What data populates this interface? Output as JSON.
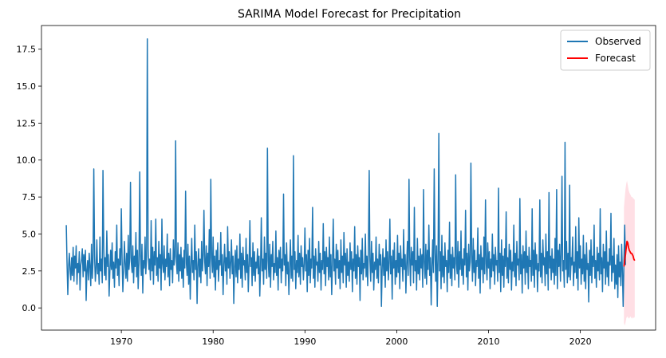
{
  "chart_data": {
    "type": "line",
    "title": "SARIMA Model Forecast for Precipitation",
    "xlabel": "",
    "ylabel": "",
    "xlim": [
      1961.3,
      2028.2
    ],
    "ylim": [
      -1.5,
      19.1
    ],
    "x_ticks": [
      1970,
      1980,
      1990,
      2000,
      2010,
      2020
    ],
    "x_tick_labels": [
      "1970",
      "1980",
      "1990",
      "2000",
      "2010",
      "2020"
    ],
    "y_ticks": [
      0,
      2.5,
      5,
      7.5,
      10,
      12.5,
      15,
      17.5
    ],
    "y_tick_labels": [
      "0.0",
      "2.5",
      "5.0",
      "7.5",
      "10.0",
      "12.5",
      "15.0",
      "17.5"
    ],
    "legend": {
      "position": "top-right",
      "entries": [
        "Observed",
        "Forecast"
      ]
    },
    "series": [
      {
        "name": "Observed",
        "color": "#1f77b4",
        "x_start": 1964.0,
        "x_step": 0.08333,
        "note_points_are_monthly": true,
        "values": [
          5.6,
          3.1,
          0.9,
          2.8,
          3.7,
          2.6,
          1.9,
          3.4,
          2.2,
          4.1,
          1.8,
          3.5,
          2.7,
          4.2,
          1.6,
          3.0,
          2.4,
          3.8,
          1.2,
          2.9,
          3.3,
          4.0,
          2.1,
          3.6,
          2.5,
          3.9,
          0.5,
          2.6,
          3.2,
          1.9,
          3.7,
          2.8,
          1.5,
          4.3,
          2.0,
          3.1,
          9.4,
          3.5,
          1.8,
          2.7,
          4.6,
          2.3,
          3.0,
          1.6,
          4.8,
          2.5,
          3.3,
          1.7,
          9.3,
          4.1,
          2.2,
          3.4,
          1.9,
          5.2,
          2.8,
          3.6,
          0.8,
          2.4,
          3.9,
          2.6,
          4.4,
          2.0,
          3.1,
          1.4,
          3.8,
          2.7,
          5.6,
          2.2,
          3.3,
          1.5,
          4.0,
          2.9,
          6.7,
          3.2,
          1.1,
          2.5,
          4.5,
          3.0,
          2.0,
          3.7,
          1.8,
          4.9,
          2.6,
          3.4,
          8.5,
          3.1,
          2.4,
          4.2,
          1.7,
          3.5,
          2.8,
          5.1,
          2.1,
          3.9,
          1.3,
          3.0,
          9.2,
          3.6,
          2.2,
          4.3,
          1.0,
          3.2,
          2.7,
          4.8,
          2.3,
          3.5,
          18.2,
          4.0,
          2.6,
          3.3,
          1.9,
          5.9,
          2.5,
          4.1,
          1.6,
          3.8,
          2.9,
          6.0,
          2.2,
          3.4,
          1.8,
          4.5,
          2.7,
          3.6,
          1.2,
          6.0,
          3.0,
          2.4,
          4.2,
          1.9,
          3.3,
          2.8,
          5.0,
          2.1,
          3.7,
          1.5,
          4.0,
          2.6,
          3.2,
          1.7,
          4.6,
          2.9,
          3.5,
          11.3,
          3.1,
          2.3,
          4.4,
          1.8,
          3.6,
          2.5,
          4.1,
          2.0,
          3.4,
          1.4,
          3.9,
          2.7,
          7.9,
          3.0,
          2.2,
          4.3,
          1.6,
          3.5,
          0.6,
          2.9,
          4.7,
          2.4,
          3.2,
          1.9,
          5.6,
          2.6,
          3.8,
          0.3,
          2.8,
          4.0,
          2.1,
          3.3,
          1.7,
          4.5,
          2.5,
          3.6,
          6.6,
          3.1,
          2.3,
          4.2,
          1.5,
          3.7,
          2.8,
          5.3,
          2.0,
          8.7,
          3.4,
          2.4,
          4.8,
          2.1,
          3.5,
          1.2,
          3.9,
          2.6,
          4.4,
          1.8,
          3.2,
          2.9,
          5.1,
          2.2,
          3.6,
          0.9,
          3.0,
          4.3,
          2.5,
          3.4,
          1.6,
          5.5,
          2.7,
          3.8,
          2.0,
          3.1,
          4.6,
          2.3,
          3.5,
          0.3,
          2.8,
          3.9,
          2.1,
          4.2,
          1.7,
          3.3,
          2.6,
          5.0,
          2.0,
          3.7,
          1.4,
          4.1,
          2.9,
          3.2,
          1.9,
          4.7,
          2.4,
          3.6,
          1.1,
          3.0,
          5.9,
          2.8,
          3.4,
          1.5,
          4.4,
          2.2,
          3.8,
          1.8,
          3.1,
          2.7,
          4.0,
          2.3,
          3.5,
          0.8,
          2.9,
          6.1,
          2.5,
          3.3,
          1.6,
          4.8,
          2.6,
          3.7,
          2.0,
          10.8,
          3.2,
          2.1,
          4.3,
          1.4,
          3.6,
          2.8,
          4.5,
          1.9,
          3.0,
          2.4,
          5.2,
          2.2,
          3.4,
          1.2,
          3.9,
          2.7,
          4.1,
          1.7,
          3.3,
          2.5,
          7.7,
          2.9,
          3.6,
          1.5,
          4.4,
          2.3,
          3.1,
          0.9,
          2.8,
          4.6,
          2.0,
          3.5,
          1.8,
          10.3,
          2.6,
          3.8,
          1.3,
          3.2,
          2.4,
          4.9,
          2.1,
          3.7,
          1.6,
          4.2,
          2.8,
          3.4,
          1.9,
          3.0,
          5.4,
          2.5,
          3.6,
          1.1,
          3.9,
          2.2,
          4.7,
          1.7,
          3.3,
          2.7,
          6.8,
          2.0,
          3.5,
          1.4,
          4.0,
          2.9,
          3.1,
          1.8,
          4.5,
          2.4,
          3.7,
          1.2,
          3.2,
          2.6,
          5.7,
          2.3,
          3.8,
          1.5,
          4.1,
          2.8,
          3.4,
          1.9,
          4.8,
          2.1,
          3.6,
          0.9,
          3.0,
          6.0,
          2.5,
          3.3,
          1.6,
          4.3,
          2.7,
          3.9,
          2.0,
          3.2,
          1.3,
          4.6,
          2.4,
          3.5,
          1.7,
          5.1,
          2.9,
          3.7,
          1.4,
          4.0,
          2.2,
          3.1,
          1.8,
          4.4,
          2.6,
          3.8,
          1.1,
          3.3,
          2.5,
          5.5,
          2.0,
          3.6,
          1.6,
          4.2,
          2.8,
          3.4,
          0.5,
          3.9,
          2.3,
          4.7,
          1.9,
          3.0,
          2.7,
          5.0,
          2.1,
          3.5,
          1.5,
          4.1,
          9.3,
          3.2,
          1.8,
          4.5,
          2.4,
          3.7,
          1.2,
          3.1,
          2.6,
          4.8,
          2.0,
          3.3,
          1.7,
          4.3,
          2.9,
          3.6,
          0.1,
          2.8,
          4.0,
          2.2,
          3.4,
          1.4,
          4.6,
          2.5,
          3.8,
          1.9,
          3.1,
          6.0,
          2.3,
          3.5,
          0.6,
          3.9,
          2.7,
          4.4,
          1.6,
          3.2,
          2.1,
          4.9,
          2.4,
          3.7,
          1.3,
          4.2,
          2.8,
          3.3,
          1.8,
          5.3,
          2.6,
          3.6,
          1.0,
          3.0,
          4.5,
          2.2,
          8.7,
          3.4,
          1.5,
          4.1,
          2.9,
          3.8,
          1.7,
          6.8,
          2.5,
          3.2,
          1.2,
          4.7,
          2.3,
          3.5,
          1.9,
          4.0,
          2.7,
          3.6,
          1.4,
          8.0,
          3.1,
          2.0,
          4.3,
          1.6,
          3.9,
          2.6,
          5.6,
          2.2,
          3.4,
          0.2,
          2.8,
          4.6,
          2.4,
          9.4,
          3.7,
          1.8,
          4.2,
          0.1,
          3.3,
          11.8,
          2.5,
          3.8,
          1.3,
          4.9,
          2.1,
          3.5,
          1.7,
          4.4,
          2.8,
          3.2,
          1.1,
          3.9,
          2.4,
          5.8,
          2.0,
          3.6,
          1.5,
          4.1,
          2.7,
          3.4,
          1.9,
          9.0,
          3.0,
          2.3,
          4.5,
          1.4,
          3.8,
          2.6,
          5.2,
          2.2,
          3.3,
          1.6,
          4.0,
          2.9,
          6.6,
          2.1,
          3.7,
          1.2,
          4.3,
          2.5,
          3.1,
          9.8,
          3.5,
          1.8,
          4.7,
          2.4,
          3.9,
          1.5,
          3.2,
          2.8,
          5.4,
          2.0,
          3.6,
          1.0,
          4.2,
          2.6,
          3.4,
          1.7,
          4.8,
          2.3,
          7.3,
          3.0,
          1.9,
          4.4,
          2.7,
          3.8,
          1.3,
          3.3,
          2.1,
          5.0,
          2.5,
          3.6,
          1.6,
          4.1,
          2.9,
          3.2,
          1.8,
          8.1,
          2.4,
          3.7,
          1.1,
          4.6,
          2.2,
          3.5,
          1.4,
          4.0,
          2.8,
          6.5,
          2.0,
          3.4,
          1.7,
          4.3,
          2.6,
          3.9,
          1.2,
          3.1,
          2.5,
          5.6,
          2.1,
          3.7,
          1.5,
          4.5,
          2.9,
          3.3,
          1.9,
          7.4,
          2.3,
          3.6,
          1.0,
          4.2,
          2.7,
          3.8,
          1.6,
          5.2,
          2.4,
          3.5,
          1.3,
          4.1,
          2.8,
          3.2,
          1.8,
          6.7,
          2.2,
          3.9,
          1.4,
          4.4,
          2.6,
          3.6,
          1.1,
          3.0,
          2.5,
          7.3,
          2.1,
          3.7,
          1.7,
          4.6,
          2.9,
          3.4,
          1.5,
          5.0,
          2.3,
          3.8,
          1.2,
          7.8,
          2.7,
          3.5,
          1.9,
          4.0,
          2.4,
          3.3,
          1.6,
          4.7,
          2.2,
          8.0,
          1.3,
          3.9,
          2.8,
          4.3,
          1.8,
          3.6,
          8.9,
          2.5,
          3.2,
          1.4,
          11.2,
          2.6,
          4.5,
          1.7,
          3.7,
          2.1,
          8.3,
          1.9,
          3.4,
          2.9,
          4.8,
          1.5,
          3.1,
          2.4,
          5.5,
          2.0,
          3.8,
          1.2,
          6.1,
          2.7,
          4.2,
          1.6,
          3.3,
          2.3,
          4.9,
          1.8,
          3.6,
          1.3,
          4.4,
          2.6,
          3.0,
          0.4,
          3.9,
          2.2,
          4.6,
          1.7,
          3.5,
          2.8,
          5.6,
          2.0,
          3.2,
          1.4,
          4.1,
          2.5,
          3.7,
          1.9,
          6.7,
          2.3,
          3.4,
          1.1,
          4.3,
          2.7,
          3.8,
          1.6,
          5.2,
          2.1,
          3.1,
          1.5,
          4.0,
          2.9,
          6.4,
          1.8,
          3.5,
          2.4,
          4.7,
          1.3,
          2.9,
          1.6,
          3.6,
          0.7,
          4.2,
          2.1,
          3.1,
          1.5,
          4.3,
          2.6,
          0.1,
          3.3,
          5.6,
          2.9
        ]
      },
      {
        "name": "Forecast",
        "color": "#ff0000",
        "x": [
          2024.75,
          2024.83,
          2024.92,
          2025.0,
          2025.08,
          2025.17,
          2025.25,
          2025.33,
          2025.42,
          2025.5,
          2025.58,
          2025.67,
          2025.75,
          2025.83,
          2025.92
        ],
        "values": [
          2.8,
          3.2,
          3.6,
          4.1,
          4.5,
          4.4,
          4.1,
          3.9,
          3.8,
          3.7,
          3.7,
          3.6,
          3.5,
          3.3,
          3.2
        ],
        "ci_lower": [
          -1.0,
          -1.2,
          -1.0,
          -0.7,
          -0.6,
          -0.6,
          -0.7,
          -0.7,
          -0.6,
          -0.6,
          -0.7,
          -0.7,
          -0.6,
          -0.7,
          -0.6
        ],
        "ci_upper": [
          6.8,
          7.4,
          8.0,
          8.4,
          8.6,
          8.3,
          8.0,
          7.8,
          7.7,
          7.6,
          7.5,
          7.5,
          7.4,
          7.4,
          7.3
        ],
        "ci_color": "#ffc0cb"
      }
    ]
  }
}
